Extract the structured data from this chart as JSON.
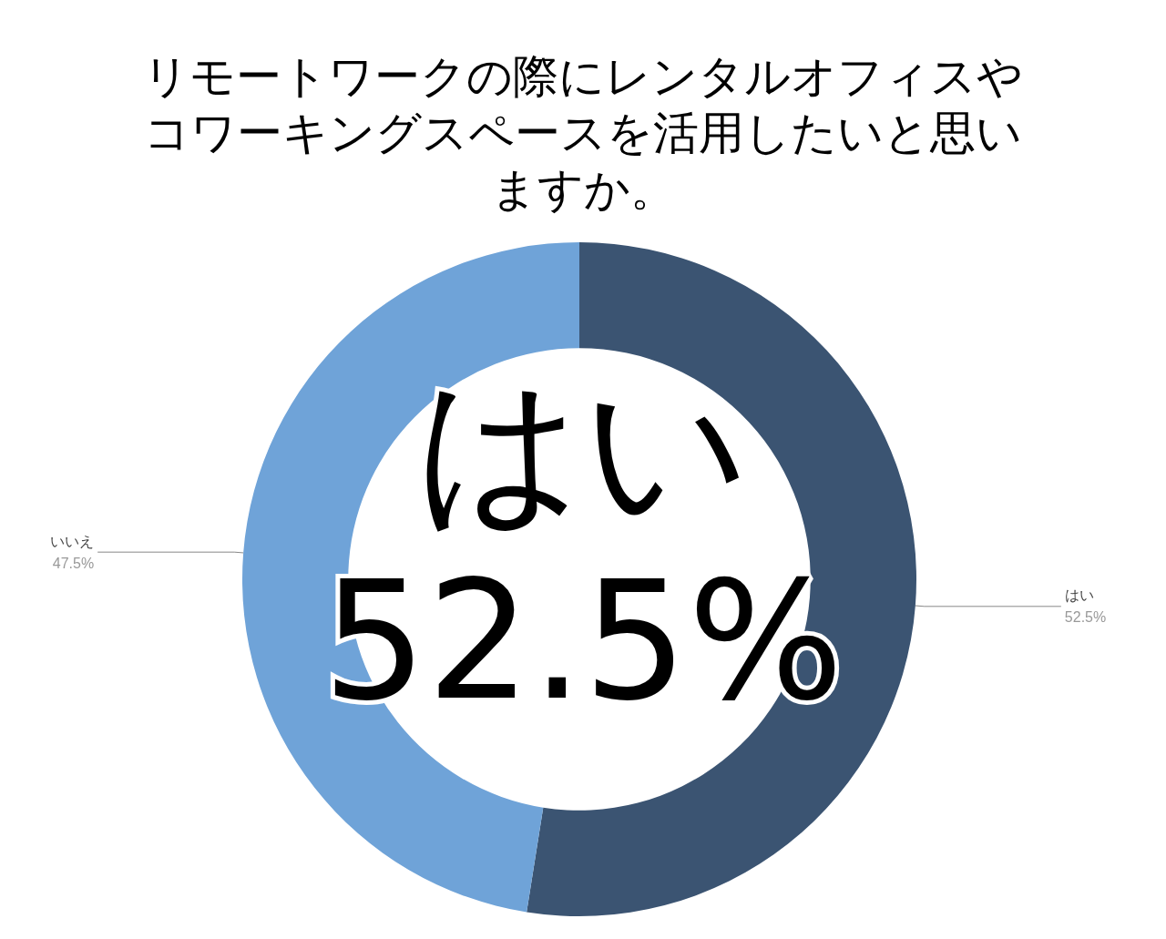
{
  "chart_data": {
    "type": "donut",
    "title": "リモートワークの際にレンタルオフィスやコワーキングスペースを活用したいと思いますか。",
    "categories": [
      "はい",
      "いいえ"
    ],
    "values": [
      52.5,
      47.5
    ],
    "value_labels": [
      "52.5%",
      "47.5%"
    ],
    "colors": [
      "#3b5472",
      "#6fa3d8"
    ],
    "annotations": [
      "はい",
      "52.5%"
    ],
    "legend": false
  }
}
